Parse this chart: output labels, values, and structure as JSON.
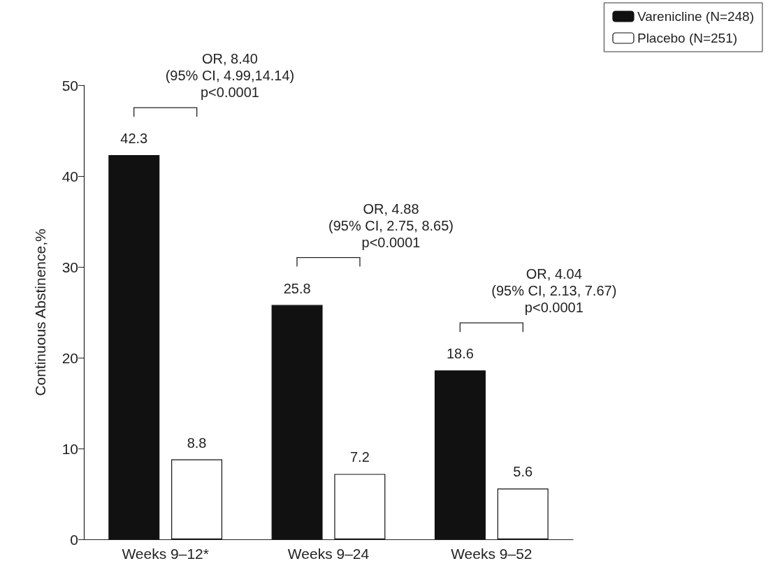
{
  "chart_data": {
    "type": "bar",
    "categories": [
      "Weeks 9–12*",
      "Weeks 9–24",
      "Weeks 9–52"
    ],
    "series": [
      {
        "name": "Varenicline (N=248)",
        "color": "#111111",
        "values": [
          42.3,
          25.8,
          18.6
        ]
      },
      {
        "name": "Placebo (N=251)",
        "color": "#ffffff",
        "values": [
          8.8,
          7.2,
          5.6
        ]
      }
    ],
    "ylabel": "Continuous Abstinence,%",
    "ylim": [
      0,
      50
    ],
    "yticks": [
      0,
      10,
      20,
      30,
      40,
      50
    ],
    "data_labels": true,
    "grid": false,
    "legend": "top right",
    "annotations": [
      "OR, 8.40\n(95% CI, 4.99,14.14)\np<0.0001",
      "OR, 4.88\n(95% CI, 2.75, 8.65)\np<0.0001",
      "OR, 4.04\n(95% CI, 2.13, 7.67)\np<0.0001"
    ]
  }
}
